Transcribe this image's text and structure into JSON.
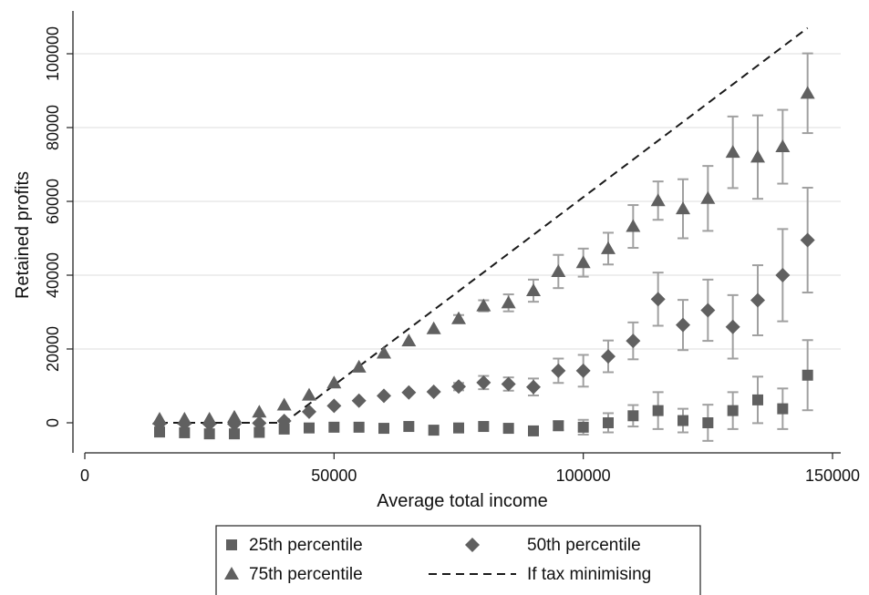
{
  "chart_data": {
    "type": "scatter",
    "title": "",
    "xlabel": "Average total income",
    "ylabel": "Retained profits",
    "xlim": [
      0,
      150000
    ],
    "ylim": [
      -8000,
      110000
    ],
    "xticks": [
      0,
      50000,
      100000,
      150000
    ],
    "yticks": [
      0,
      20000,
      40000,
      60000,
      80000,
      100000
    ],
    "grid": "horizontal",
    "legend_position": "bottom",
    "colors": {
      "markers": "#606060",
      "error_bars": "#a0a0a0",
      "line": "#1a1a1a",
      "grid": "#e4e4e4"
    },
    "series": [
      {
        "name": "25th percentile",
        "marker": "square",
        "x": [
          15000,
          20000,
          25000,
          30000,
          35000,
          40000,
          45000,
          50000,
          55000,
          60000,
          65000,
          70000,
          75000,
          80000,
          85000,
          90000,
          95000,
          100000,
          105000,
          110000,
          115000,
          120000,
          125000,
          130000,
          135000,
          140000,
          145000
        ],
        "y": [
          -2500,
          -2700,
          -3000,
          -3000,
          -2600,
          -1700,
          -1400,
          -1200,
          -1200,
          -1500,
          -1000,
          -2000,
          -1400,
          -1000,
          -1500,
          -2200,
          -800,
          -1200,
          0,
          1900,
          3300,
          600,
          0,
          3300,
          6200,
          3800,
          12900
        ],
        "err": [
          0,
          0,
          0,
          0,
          0,
          0,
          0,
          0,
          0,
          0,
          0,
          0,
          0,
          0,
          0,
          0,
          1200,
          2000,
          2600,
          2900,
          5000,
          3200,
          4900,
          5000,
          6300,
          5500,
          9500
        ]
      },
      {
        "name": "50th percentile",
        "marker": "diamond",
        "x": [
          15000,
          20000,
          25000,
          30000,
          35000,
          40000,
          45000,
          50000,
          55000,
          60000,
          65000,
          70000,
          75000,
          80000,
          85000,
          90000,
          95000,
          100000,
          105000,
          110000,
          115000,
          120000,
          125000,
          130000,
          135000,
          140000,
          145000
        ],
        "y": [
          -200,
          -200,
          -300,
          -300,
          -100,
          500,
          3000,
          4600,
          6000,
          7300,
          8200,
          8400,
          9800,
          10900,
          10500,
          9700,
          14100,
          14100,
          18000,
          22200,
          33500,
          26500,
          30500,
          26000,
          33200,
          40000,
          49500
        ],
        "err": [
          0,
          0,
          0,
          0,
          0,
          0,
          0,
          0,
          0,
          0,
          0,
          0,
          1000,
          1800,
          1800,
          2300,
          3300,
          4300,
          4300,
          5000,
          7200,
          6800,
          8300,
          8600,
          9500,
          12500,
          14200
        ]
      },
      {
        "name": "75th percentile",
        "marker": "triangle",
        "x": [
          15000,
          20000,
          25000,
          30000,
          35000,
          40000,
          45000,
          50000,
          55000,
          60000,
          65000,
          70000,
          75000,
          80000,
          85000,
          90000,
          95000,
          100000,
          105000,
          110000,
          115000,
          120000,
          125000,
          130000,
          135000,
          140000,
          145000
        ],
        "y": [
          1000,
          1000,
          1000,
          1500,
          2900,
          4800,
          7500,
          10800,
          15100,
          18900,
          22200,
          25500,
          28200,
          31700,
          32500,
          35800,
          41000,
          43400,
          47200,
          53200,
          60200,
          58000,
          60800,
          73300,
          72000,
          74800,
          89300
        ],
        "err": [
          0,
          0,
          0,
          0,
          0,
          0,
          0,
          0,
          0,
          0,
          0,
          0,
          1000,
          1500,
          2300,
          3000,
          4500,
          3800,
          4300,
          5800,
          5200,
          8000,
          8800,
          9700,
          11300,
          10000,
          10800
        ]
      },
      {
        "name": "If tax minimising",
        "type": "dashed-line",
        "x": [
          15000,
          40000,
          145000
        ],
        "y": [
          0,
          0,
          107000
        ]
      }
    ]
  }
}
